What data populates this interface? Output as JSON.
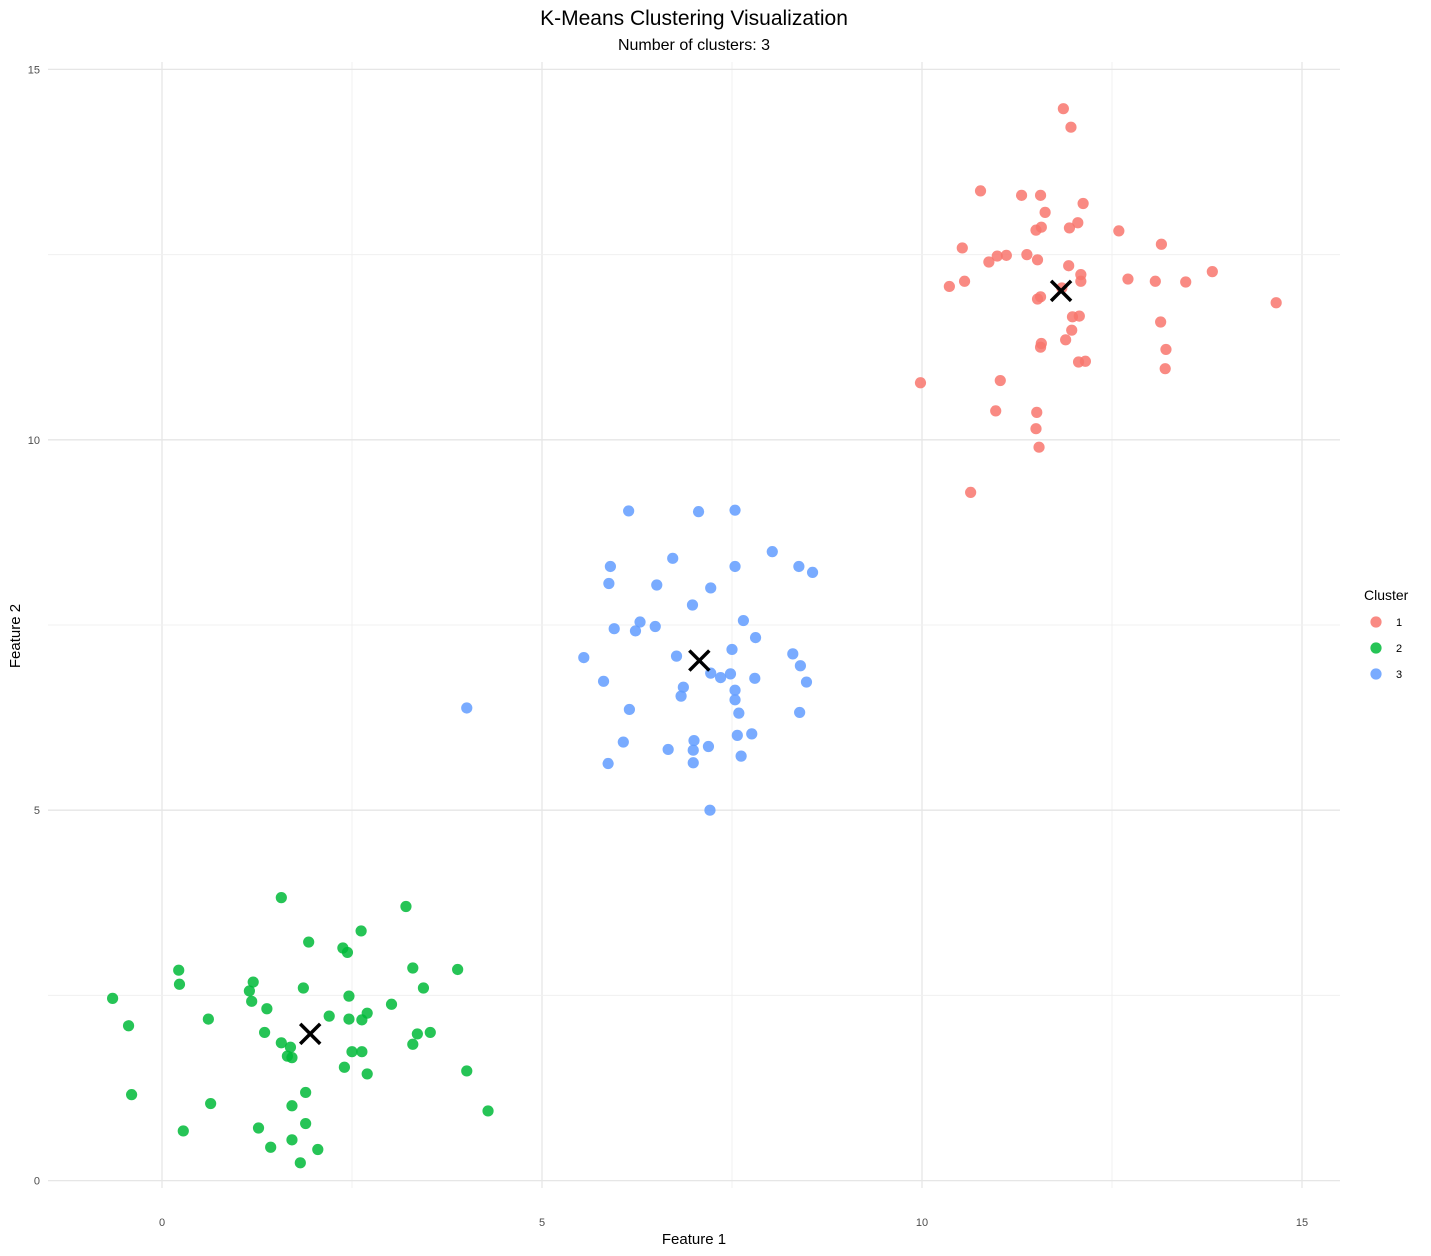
{
  "chart_data": {
    "type": "scatter",
    "title": "K-Means Clustering Visualization",
    "subtitle": "Number of clusters: 3",
    "xlabel": "Feature 1",
    "ylabel": "Feature 2",
    "xlim": [
      -1.5,
      15.5
    ],
    "ylim": [
      -0.1,
      15.1
    ],
    "x_ticks": [
      0,
      5,
      10,
      15
    ],
    "y_ticks": [
      0,
      5,
      10,
      15
    ],
    "x_tick_labels": [
      "0",
      "5",
      "10",
      "15"
    ],
    "y_tick_labels": [
      "0",
      "5",
      "10",
      "15"
    ],
    "grid": true,
    "legend": {
      "title": "Cluster",
      "position": "right",
      "entries": [
        "1",
        "2",
        "3"
      ]
    },
    "series": [
      {
        "name": "1",
        "color": "#F8766D",
        "points": [
          [
            11.86,
            14.47
          ],
          [
            11.96,
            14.22
          ],
          [
            10.77,
            13.36
          ],
          [
            11.31,
            13.3
          ],
          [
            11.56,
            13.3
          ],
          [
            12.12,
            13.19
          ],
          [
            11.62,
            13.07
          ],
          [
            12.05,
            12.93
          ],
          [
            11.5,
            12.83
          ],
          [
            11.57,
            12.87
          ],
          [
            11.94,
            12.86
          ],
          [
            12.59,
            12.82
          ],
          [
            13.15,
            12.64
          ],
          [
            10.53,
            12.59
          ],
          [
            11.38,
            12.5
          ],
          [
            10.99,
            12.48
          ],
          [
            11.11,
            12.49
          ],
          [
            10.88,
            12.4
          ],
          [
            11.52,
            12.43
          ],
          [
            11.93,
            12.35
          ],
          [
            12.09,
            12.23
          ],
          [
            13.82,
            12.27
          ],
          [
            12.71,
            12.17
          ],
          [
            13.07,
            12.14
          ],
          [
            12.09,
            12.14
          ],
          [
            13.47,
            12.13
          ],
          [
            10.56,
            12.14
          ],
          [
            10.36,
            12.07
          ],
          [
            11.84,
            12.05
          ],
          [
            11.56,
            11.93
          ],
          [
            11.52,
            11.9
          ],
          [
            14.66,
            11.85
          ],
          [
            11.98,
            11.66
          ],
          [
            12.07,
            11.67
          ],
          [
            13.14,
            11.59
          ],
          [
            11.97,
            11.48
          ],
          [
            11.89,
            11.35
          ],
          [
            11.57,
            11.3
          ],
          [
            11.56,
            11.25
          ],
          [
            13.21,
            11.22
          ],
          [
            12.06,
            11.05
          ],
          [
            12.15,
            11.06
          ],
          [
            13.2,
            10.96
          ],
          [
            11.03,
            10.8
          ],
          [
            9.98,
            10.77
          ],
          [
            10.97,
            10.39
          ],
          [
            11.51,
            10.37
          ],
          [
            11.5,
            10.15
          ],
          [
            11.54,
            9.9
          ],
          [
            10.64,
            9.29
          ]
        ]
      },
      {
        "name": "2",
        "color": "#00BA38",
        "points": [
          [
            1.57,
            3.82
          ],
          [
            3.21,
            3.7
          ],
          [
            2.62,
            3.37
          ],
          [
            1.93,
            3.22
          ],
          [
            2.38,
            3.14
          ],
          [
            2.44,
            3.08
          ],
          [
            3.3,
            2.87
          ],
          [
            3.89,
            2.85
          ],
          [
            0.22,
            2.84
          ],
          [
            1.2,
            2.68
          ],
          [
            0.23,
            2.65
          ],
          [
            3.44,
            2.6
          ],
          [
            1.86,
            2.6
          ],
          [
            1.15,
            2.56
          ],
          [
            -0.65,
            2.46
          ],
          [
            2.46,
            2.49
          ],
          [
            1.18,
            2.42
          ],
          [
            3.02,
            2.38
          ],
          [
            1.38,
            2.32
          ],
          [
            2.7,
            2.26
          ],
          [
            2.2,
            2.22
          ],
          [
            0.61,
            2.18
          ],
          [
            2.46,
            2.18
          ],
          [
            2.63,
            2.17
          ],
          [
            -0.44,
            2.09
          ],
          [
            1.35,
            2.0
          ],
          [
            3.53,
            2.0
          ],
          [
            3.36,
            1.98
          ],
          [
            1.57,
            1.86
          ],
          [
            3.3,
            1.84
          ],
          [
            1.69,
            1.8
          ],
          [
            2.5,
            1.74
          ],
          [
            2.63,
            1.74
          ],
          [
            1.65,
            1.68
          ],
          [
            1.71,
            1.66
          ],
          [
            2.4,
            1.53
          ],
          [
            2.7,
            1.44
          ],
          [
            4.01,
            1.48
          ],
          [
            1.89,
            1.19
          ],
          [
            -0.4,
            1.16
          ],
          [
            0.64,
            1.04
          ],
          [
            1.71,
            1.01
          ],
          [
            4.29,
            0.94
          ],
          [
            1.89,
            0.77
          ],
          [
            0.28,
            0.67
          ],
          [
            1.27,
            0.71
          ],
          [
            1.71,
            0.55
          ],
          [
            1.43,
            0.45
          ],
          [
            2.05,
            0.42
          ],
          [
            1.82,
            0.24
          ]
        ]
      },
      {
        "name": "3",
        "color": "#619CFF",
        "points": [
          [
            6.14,
            9.04
          ],
          [
            7.06,
            9.03
          ],
          [
            7.54,
            9.05
          ],
          [
            8.03,
            8.49
          ],
          [
            6.72,
            8.4
          ],
          [
            5.9,
            8.29
          ],
          [
            7.54,
            8.29
          ],
          [
            8.38,
            8.29
          ],
          [
            8.56,
            8.21
          ],
          [
            5.88,
            8.06
          ],
          [
            6.51,
            8.04
          ],
          [
            7.22,
            8.0
          ],
          [
            6.98,
            7.77
          ],
          [
            7.65,
            7.56
          ],
          [
            6.29,
            7.54
          ],
          [
            6.49,
            7.48
          ],
          [
            5.95,
            7.45
          ],
          [
            6.23,
            7.42
          ],
          [
            7.81,
            7.33
          ],
          [
            7.5,
            7.17
          ],
          [
            8.3,
            7.11
          ],
          [
            6.77,
            7.08
          ],
          [
            5.55,
            7.06
          ],
          [
            8.4,
            6.95
          ],
          [
            7.22,
            6.85
          ],
          [
            7.48,
            6.84
          ],
          [
            7.35,
            6.79
          ],
          [
            7.8,
            6.78
          ],
          [
            5.81,
            6.74
          ],
          [
            8.48,
            6.73
          ],
          [
            6.86,
            6.66
          ],
          [
            7.54,
            6.62
          ],
          [
            6.83,
            6.54
          ],
          [
            7.54,
            6.49
          ],
          [
            4.01,
            6.38
          ],
          [
            6.15,
            6.36
          ],
          [
            7.59,
            6.31
          ],
          [
            8.39,
            6.32
          ],
          [
            7.57,
            6.01
          ],
          [
            7.76,
            6.03
          ],
          [
            6.07,
            5.92
          ],
          [
            7.0,
            5.94
          ],
          [
            7.19,
            5.86
          ],
          [
            6.66,
            5.82
          ],
          [
            6.99,
            5.81
          ],
          [
            7.62,
            5.73
          ],
          [
            5.87,
            5.63
          ],
          [
            6.99,
            5.64
          ],
          [
            7.21,
            5.0
          ]
        ]
      }
    ],
    "centroids": [
      {
        "name": "1",
        "x": 11.83,
        "y": 12.01
      },
      {
        "name": "2",
        "x": 1.95,
        "y": 1.98
      },
      {
        "name": "3",
        "x": 7.07,
        "y": 7.02
      }
    ]
  }
}
